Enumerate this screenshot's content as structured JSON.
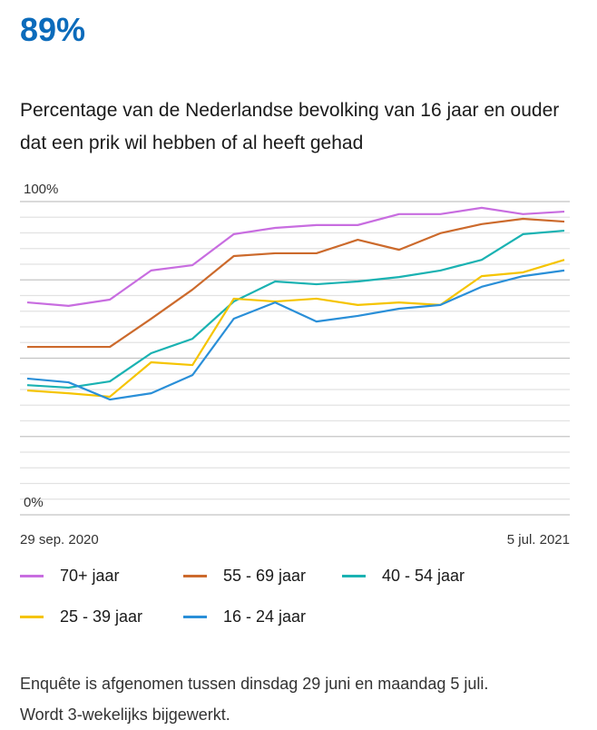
{
  "headline": "89%",
  "chart_data": {
    "type": "line",
    "title": "Percentage van de Nederlandse bevolking van 16 jaar en ouder dat een prik wil hebben of al heeft gehad",
    "categories": [
      "29 sep. 2020",
      null,
      null,
      null,
      null,
      null,
      null,
      null,
      null,
      null,
      null,
      null,
      null,
      "5 jul. 2021"
    ],
    "series": [
      {
        "name": "70+ jaar",
        "color": "#c86de0",
        "values": [
          67.8,
          66.7,
          68.7,
          78,
          79.7,
          89.6,
          91.6,
          92.5,
          92.5,
          96,
          96,
          98,
          96,
          96.8
        ]
      },
      {
        "name": "55 - 69 jaar",
        "color": "#cc6a2c",
        "values": [
          53.6,
          53.6,
          53.6,
          62.6,
          71.9,
          82.6,
          83.5,
          83.5,
          87.8,
          84.6,
          89.9,
          92.8,
          94.5,
          93.6
        ]
      },
      {
        "name": "40 - 54 jaar",
        "color": "#1ab2b2",
        "values": [
          41.4,
          40.6,
          42.6,
          51.6,
          56.2,
          68.1,
          74.5,
          73.6,
          74.5,
          75.9,
          78,
          81.4,
          89.6,
          90.7
        ]
      },
      {
        "name": "25 - 39 jaar",
        "color": "#f5c400",
        "values": [
          39.7,
          38.8,
          37.7,
          48.7,
          47.8,
          69,
          68.1,
          69,
          67,
          67.8,
          67,
          76.2,
          77.4,
          81.4
        ]
      },
      {
        "name": "16 - 24 jaar",
        "color": "#2a8fd8",
        "values": [
          43.5,
          42.3,
          36.8,
          38.8,
          44.6,
          62.6,
          67.8,
          61.7,
          63.5,
          65.8,
          67,
          72.8,
          76.2,
          78
        ]
      }
    ],
    "ylim": [
      0,
      100
    ],
    "yticks": [
      {
        "value": 0,
        "label": "0%"
      },
      {
        "value": 100,
        "label": "100%"
      }
    ],
    "ygrid": [
      0,
      5,
      10,
      15,
      20,
      25,
      30,
      35,
      40,
      45,
      50,
      55,
      60,
      65,
      70,
      75,
      80,
      85,
      90,
      95,
      100
    ]
  },
  "footer": [
    "Enquête is afgenomen tussen dinsdag 29 juni en maandag 5 juli.",
    "Wordt 3-wekelijks bijgewerkt."
  ]
}
